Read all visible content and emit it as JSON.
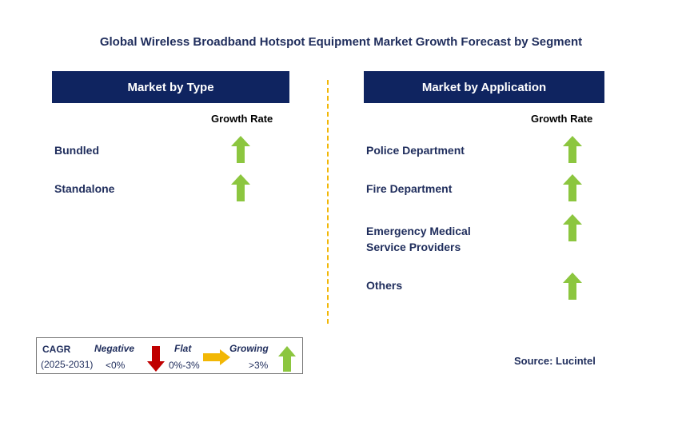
{
  "title": "Global Wireless Broadband Hotspot Equipment Market Growth Forecast by Segment",
  "type_panel": {
    "header": "Market by Type",
    "growth_rate_label": "Growth Rate",
    "segments": [
      {
        "label": "Bundled",
        "trend": "growing"
      },
      {
        "label": "Standalone",
        "trend": "growing"
      }
    ]
  },
  "application_panel": {
    "header": "Market by Application",
    "growth_rate_label": "Growth Rate",
    "segments": [
      {
        "label_line1": "Police Department",
        "label_line2": "",
        "trend": "growing"
      },
      {
        "label_line1": "Fire Department",
        "label_line2": "",
        "trend": "growing"
      },
      {
        "label_line1": "Emergency Medical",
        "label_line2": "Service Providers",
        "trend": "growing"
      },
      {
        "label_line1": "Others",
        "label_line2": "",
        "trend": "growing"
      }
    ]
  },
  "legend": {
    "cagr_label": "CAGR",
    "period": "(2025-2031)",
    "negative_label": "Negative",
    "negative_value": "<0%",
    "flat_label": "Flat",
    "flat_value": "0%-3%",
    "growing_label": "Growing",
    "growing_value": ">3%"
  },
  "source": "Source: Lucintel",
  "colors": {
    "header_bg": "#0f2460",
    "text": "#1f2d5c",
    "growing": "#8cc63f",
    "flat": "#f2b705",
    "negative": "#c00000",
    "divider": "#f2b705"
  }
}
